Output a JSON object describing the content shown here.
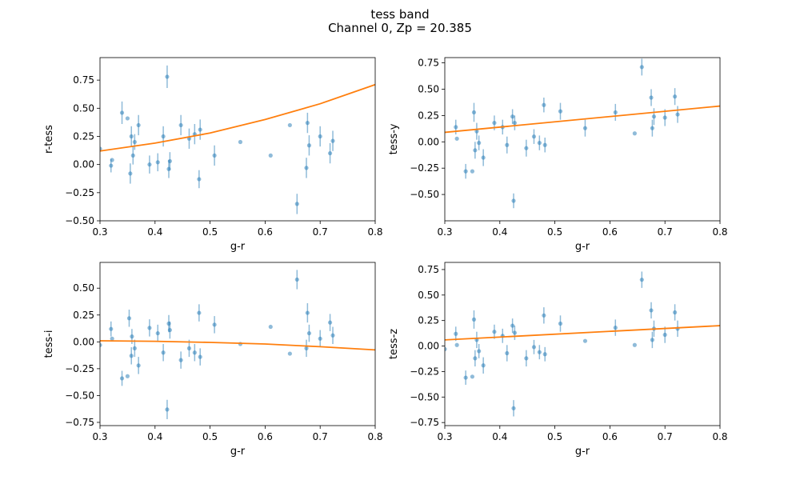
{
  "figure": {
    "title_line1": "tess band",
    "title_line2": "Channel 0, Zp = 20.385"
  },
  "colors": {
    "points": "#1f77b4",
    "fit": "#ff7f0e",
    "axes": "#000000",
    "background": "#ffffff"
  },
  "chart_data": [
    {
      "type": "scatter",
      "xlabel": "g-r",
      "ylabel": "r-tess",
      "xlim": [
        0.3,
        0.8
      ],
      "ylim": [
        -0.5,
        0.95
      ],
      "xticks": [
        0.3,
        0.4,
        0.5,
        0.6,
        0.7,
        0.8
      ],
      "xtick_labels": [
        "0.3",
        "0.4",
        "0.5",
        "0.6",
        "0.7",
        "0.8"
      ],
      "yticks": [
        -0.5,
        -0.25,
        0.0,
        0.25,
        0.5,
        0.75
      ],
      "ytick_labels": [
        "−0.50",
        "−0.25",
        "0.00",
        "0.25",
        "0.50",
        "0.75"
      ],
      "grid": false,
      "points": [
        {
          "x": 0.3,
          "y": 0.14,
          "err": 0.0
        },
        {
          "x": 0.32,
          "y": -0.01,
          "err": 0.06
        },
        {
          "x": 0.322,
          "y": 0.04,
          "err": 0.0
        },
        {
          "x": 0.34,
          "y": 0.46,
          "err": 0.1
        },
        {
          "x": 0.35,
          "y": 0.41,
          "err": 0.0
        },
        {
          "x": 0.355,
          "y": -0.08,
          "err": 0.09
        },
        {
          "x": 0.357,
          "y": 0.25,
          "err": 0.09
        },
        {
          "x": 0.36,
          "y": 0.08,
          "err": 0.08
        },
        {
          "x": 0.363,
          "y": 0.2,
          "err": 0.07
        },
        {
          "x": 0.37,
          "y": 0.35,
          "err": 0.09
        },
        {
          "x": 0.39,
          "y": 0.0,
          "err": 0.08
        },
        {
          "x": 0.405,
          "y": 0.02,
          "err": 0.08
        },
        {
          "x": 0.415,
          "y": 0.25,
          "err": 0.09
        },
        {
          "x": 0.422,
          "y": 0.78,
          "err": 0.1
        },
        {
          "x": 0.425,
          "y": -0.04,
          "err": 0.08
        },
        {
          "x": 0.427,
          "y": 0.03,
          "err": 0.08
        },
        {
          "x": 0.447,
          "y": 0.35,
          "err": 0.09
        },
        {
          "x": 0.462,
          "y": 0.23,
          "err": 0.09
        },
        {
          "x": 0.472,
          "y": 0.27,
          "err": 0.09
        },
        {
          "x": 0.48,
          "y": -0.13,
          "err": 0.08
        },
        {
          "x": 0.482,
          "y": 0.31,
          "err": 0.09
        },
        {
          "x": 0.508,
          "y": 0.08,
          "err": 0.09
        },
        {
          "x": 0.555,
          "y": 0.2,
          "err": 0.0
        },
        {
          "x": 0.61,
          "y": 0.08,
          "err": 0.0
        },
        {
          "x": 0.645,
          "y": 0.35,
          "err": 0.0
        },
        {
          "x": 0.658,
          "y": -0.35,
          "err": 0.09
        },
        {
          "x": 0.675,
          "y": -0.03,
          "err": 0.09
        },
        {
          "x": 0.677,
          "y": 0.37,
          "err": 0.09
        },
        {
          "x": 0.68,
          "y": 0.17,
          "err": 0.09
        },
        {
          "x": 0.7,
          "y": 0.25,
          "err": 0.09
        },
        {
          "x": 0.718,
          "y": 0.1,
          "err": 0.09
        },
        {
          "x": 0.723,
          "y": 0.21,
          "err": 0.09
        }
      ],
      "fit": {
        "x": [
          0.3,
          0.4,
          0.5,
          0.6,
          0.7,
          0.8
        ],
        "y": [
          0.12,
          0.19,
          0.28,
          0.4,
          0.54,
          0.71
        ]
      }
    },
    {
      "type": "scatter",
      "xlabel": "g-r",
      "ylabel": "tess-y",
      "xlim": [
        0.3,
        0.8
      ],
      "ylim": [
        -0.75,
        0.8
      ],
      "xticks": [
        0.3,
        0.4,
        0.5,
        0.6,
        0.7,
        0.8
      ],
      "xtick_labels": [
        "0.3",
        "0.4",
        "0.5",
        "0.6",
        "0.7",
        "0.8"
      ],
      "yticks": [
        -0.5,
        -0.25,
        0.0,
        0.25,
        0.5,
        0.75
      ],
      "ytick_labels": [
        "−0.50",
        "−0.25",
        "0.00",
        "0.25",
        "0.50",
        "0.75"
      ],
      "grid": false,
      "points": [
        {
          "x": 0.32,
          "y": 0.14,
          "err": 0.07
        },
        {
          "x": 0.322,
          "y": 0.03,
          "err": 0.0
        },
        {
          "x": 0.338,
          "y": -0.28,
          "err": 0.07
        },
        {
          "x": 0.35,
          "y": -0.28,
          "err": 0.0
        },
        {
          "x": 0.353,
          "y": 0.28,
          "err": 0.09
        },
        {
          "x": 0.355,
          "y": -0.08,
          "err": 0.08
        },
        {
          "x": 0.358,
          "y": 0.1,
          "err": 0.08
        },
        {
          "x": 0.362,
          "y": -0.01,
          "err": 0.07
        },
        {
          "x": 0.37,
          "y": -0.15,
          "err": 0.08
        },
        {
          "x": 0.39,
          "y": 0.18,
          "err": 0.07
        },
        {
          "x": 0.405,
          "y": 0.14,
          "err": 0.07
        },
        {
          "x": 0.413,
          "y": -0.03,
          "err": 0.08
        },
        {
          "x": 0.423,
          "y": 0.24,
          "err": 0.07
        },
        {
          "x": 0.425,
          "y": -0.56,
          "err": 0.07
        },
        {
          "x": 0.427,
          "y": 0.18,
          "err": 0.07
        },
        {
          "x": 0.448,
          "y": -0.06,
          "err": 0.08
        },
        {
          "x": 0.462,
          "y": 0.05,
          "err": 0.07
        },
        {
          "x": 0.472,
          "y": -0.01,
          "err": 0.07
        },
        {
          "x": 0.48,
          "y": 0.35,
          "err": 0.07
        },
        {
          "x": 0.482,
          "y": -0.03,
          "err": 0.07
        },
        {
          "x": 0.51,
          "y": 0.29,
          "err": 0.08
        },
        {
          "x": 0.555,
          "y": 0.13,
          "err": 0.08
        },
        {
          "x": 0.61,
          "y": 0.28,
          "err": 0.08
        },
        {
          "x": 0.645,
          "y": 0.08,
          "err": 0.0
        },
        {
          "x": 0.658,
          "y": 0.71,
          "err": 0.08
        },
        {
          "x": 0.675,
          "y": 0.42,
          "err": 0.08
        },
        {
          "x": 0.677,
          "y": 0.13,
          "err": 0.08
        },
        {
          "x": 0.68,
          "y": 0.24,
          "err": 0.08
        },
        {
          "x": 0.7,
          "y": 0.23,
          "err": 0.08
        },
        {
          "x": 0.718,
          "y": 0.43,
          "err": 0.08
        },
        {
          "x": 0.723,
          "y": 0.26,
          "err": 0.08
        }
      ],
      "fit": {
        "x": [
          0.3,
          0.8
        ],
        "y": [
          0.09,
          0.34
        ]
      }
    },
    {
      "type": "scatter",
      "xlabel": "g-r",
      "ylabel": "tess-i",
      "xlim": [
        0.3,
        0.8
      ],
      "ylim": [
        -0.78,
        0.74
      ],
      "xticks": [
        0.3,
        0.4,
        0.5,
        0.6,
        0.7,
        0.8
      ],
      "xtick_labels": [
        "0.3",
        "0.4",
        "0.5",
        "0.6",
        "0.7",
        "0.8"
      ],
      "yticks": [
        -0.75,
        -0.5,
        -0.25,
        0.0,
        0.25,
        0.5
      ],
      "ytick_labels": [
        "−0.75",
        "−0.50",
        "−0.25",
        "0.00",
        "0.25",
        "0.50"
      ],
      "grid": false,
      "points": [
        {
          "x": 0.3,
          "y": -0.03,
          "err": 0.0
        },
        {
          "x": 0.32,
          "y": 0.12,
          "err": 0.07
        },
        {
          "x": 0.322,
          "y": 0.03,
          "err": 0.0
        },
        {
          "x": 0.34,
          "y": -0.34,
          "err": 0.07
        },
        {
          "x": 0.35,
          "y": -0.32,
          "err": 0.0
        },
        {
          "x": 0.353,
          "y": 0.22,
          "err": 0.08
        },
        {
          "x": 0.357,
          "y": -0.13,
          "err": 0.08
        },
        {
          "x": 0.358,
          "y": 0.05,
          "err": 0.07
        },
        {
          "x": 0.363,
          "y": -0.06,
          "err": 0.08
        },
        {
          "x": 0.37,
          "y": -0.22,
          "err": 0.08
        },
        {
          "x": 0.39,
          "y": 0.13,
          "err": 0.08
        },
        {
          "x": 0.405,
          "y": 0.08,
          "err": 0.08
        },
        {
          "x": 0.415,
          "y": -0.1,
          "err": 0.08
        },
        {
          "x": 0.422,
          "y": -0.63,
          "err": 0.09
        },
        {
          "x": 0.425,
          "y": 0.17,
          "err": 0.08
        },
        {
          "x": 0.427,
          "y": 0.11,
          "err": 0.08
        },
        {
          "x": 0.447,
          "y": -0.17,
          "err": 0.08
        },
        {
          "x": 0.462,
          "y": -0.06,
          "err": 0.08
        },
        {
          "x": 0.472,
          "y": -0.1,
          "err": 0.08
        },
        {
          "x": 0.48,
          "y": 0.27,
          "err": 0.08
        },
        {
          "x": 0.482,
          "y": -0.14,
          "err": 0.08
        },
        {
          "x": 0.508,
          "y": 0.16,
          "err": 0.08
        },
        {
          "x": 0.555,
          "y": -0.02,
          "err": 0.0
        },
        {
          "x": 0.61,
          "y": 0.14,
          "err": 0.0
        },
        {
          "x": 0.645,
          "y": -0.11,
          "err": 0.0
        },
        {
          "x": 0.658,
          "y": 0.58,
          "err": 0.09
        },
        {
          "x": 0.675,
          "y": -0.06,
          "err": 0.08
        },
        {
          "x": 0.677,
          "y": 0.27,
          "err": 0.09
        },
        {
          "x": 0.68,
          "y": 0.08,
          "err": 0.08
        },
        {
          "x": 0.7,
          "y": 0.03,
          "err": 0.08
        },
        {
          "x": 0.718,
          "y": 0.18,
          "err": 0.08
        },
        {
          "x": 0.723,
          "y": 0.06,
          "err": 0.08
        }
      ],
      "fit": {
        "x": [
          0.3,
          0.4,
          0.5,
          0.6,
          0.7,
          0.8
        ],
        "y": [
          0.01,
          0.005,
          -0.005,
          -0.02,
          -0.045,
          -0.075
        ]
      }
    },
    {
      "type": "scatter",
      "xlabel": "g-r",
      "ylabel": "tess-z",
      "xlim": [
        0.3,
        0.8
      ],
      "ylim": [
        -0.78,
        0.82
      ],
      "xticks": [
        0.3,
        0.4,
        0.5,
        0.6,
        0.7,
        0.8
      ],
      "xtick_labels": [
        "0.3",
        "0.4",
        "0.5",
        "0.6",
        "0.7",
        "0.8"
      ],
      "yticks": [
        -0.75,
        -0.5,
        -0.25,
        0.0,
        0.25,
        0.5,
        0.75
      ],
      "ytick_labels": [
        "−0.75",
        "−0.50",
        "−0.25",
        "0.00",
        "0.25",
        "0.50",
        "0.75"
      ],
      "grid": false,
      "points": [
        {
          "x": 0.3,
          "y": -0.03,
          "err": 0.0
        },
        {
          "x": 0.32,
          "y": 0.12,
          "err": 0.07
        },
        {
          "x": 0.322,
          "y": 0.01,
          "err": 0.0
        },
        {
          "x": 0.338,
          "y": -0.31,
          "err": 0.07
        },
        {
          "x": 0.35,
          "y": -0.3,
          "err": 0.0
        },
        {
          "x": 0.353,
          "y": 0.26,
          "err": 0.09
        },
        {
          "x": 0.355,
          "y": -0.12,
          "err": 0.08
        },
        {
          "x": 0.358,
          "y": 0.06,
          "err": 0.08
        },
        {
          "x": 0.362,
          "y": -0.05,
          "err": 0.07
        },
        {
          "x": 0.37,
          "y": -0.19,
          "err": 0.08
        },
        {
          "x": 0.39,
          "y": 0.14,
          "err": 0.07
        },
        {
          "x": 0.405,
          "y": 0.1,
          "err": 0.07
        },
        {
          "x": 0.413,
          "y": -0.07,
          "err": 0.08
        },
        {
          "x": 0.423,
          "y": 0.2,
          "err": 0.07
        },
        {
          "x": 0.425,
          "y": -0.61,
          "err": 0.08
        },
        {
          "x": 0.427,
          "y": 0.13,
          "err": 0.07
        },
        {
          "x": 0.448,
          "y": -0.12,
          "err": 0.08
        },
        {
          "x": 0.462,
          "y": -0.01,
          "err": 0.07
        },
        {
          "x": 0.472,
          "y": -0.06,
          "err": 0.07
        },
        {
          "x": 0.48,
          "y": 0.3,
          "err": 0.08
        },
        {
          "x": 0.482,
          "y": -0.08,
          "err": 0.07
        },
        {
          "x": 0.51,
          "y": 0.22,
          "err": 0.08
        },
        {
          "x": 0.555,
          "y": 0.05,
          "err": 0.0
        },
        {
          "x": 0.61,
          "y": 0.18,
          "err": 0.08
        },
        {
          "x": 0.645,
          "y": 0.01,
          "err": 0.0
        },
        {
          "x": 0.658,
          "y": 0.65,
          "err": 0.08
        },
        {
          "x": 0.675,
          "y": 0.35,
          "err": 0.08
        },
        {
          "x": 0.677,
          "y": 0.06,
          "err": 0.08
        },
        {
          "x": 0.68,
          "y": 0.17,
          "err": 0.08
        },
        {
          "x": 0.7,
          "y": 0.11,
          "err": 0.08
        },
        {
          "x": 0.718,
          "y": 0.33,
          "err": 0.08
        },
        {
          "x": 0.723,
          "y": 0.17,
          "err": 0.08
        }
      ],
      "fit": {
        "x": [
          0.3,
          0.8
        ],
        "y": [
          0.06,
          0.2
        ]
      }
    }
  ]
}
